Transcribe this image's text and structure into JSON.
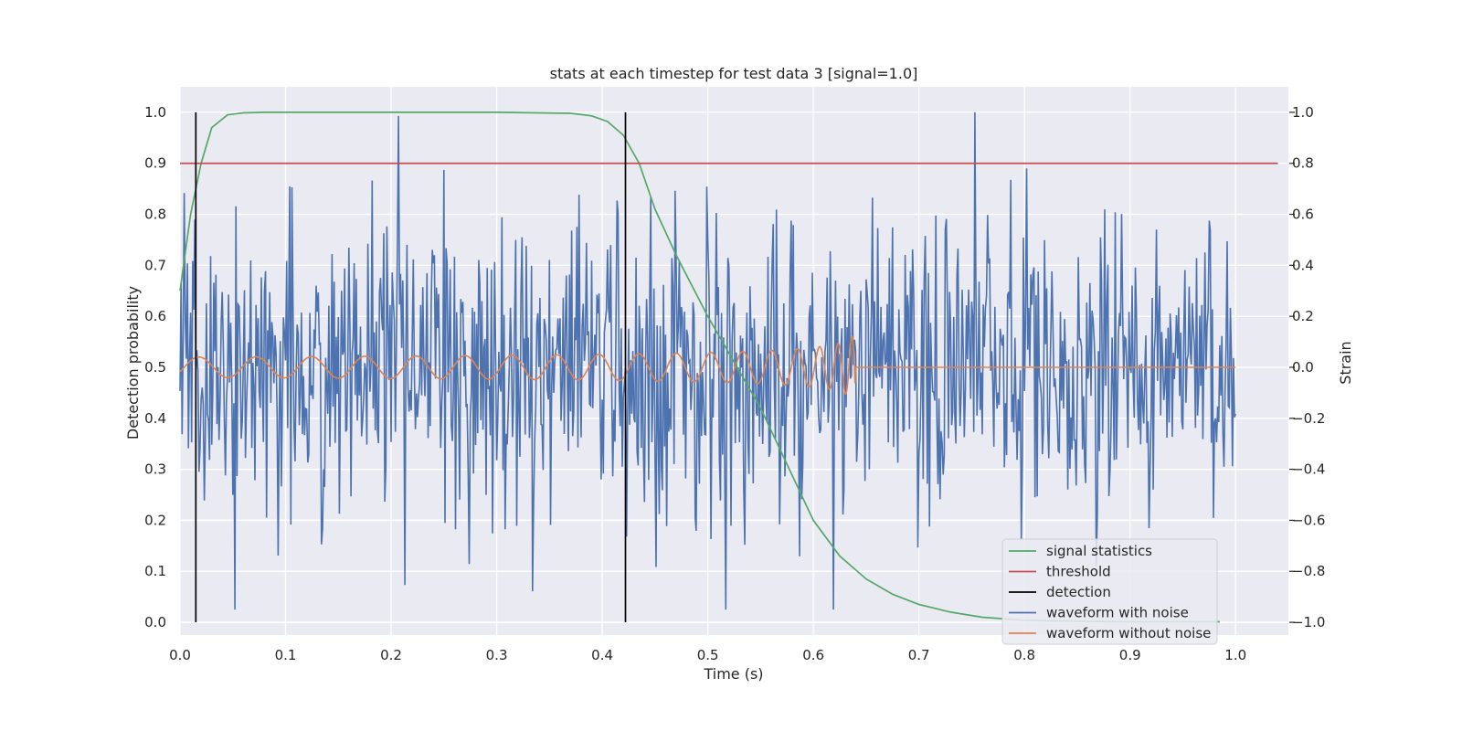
{
  "chart_data": {
    "type": "line",
    "title": "stats at each timestep for test data 3 [signal=1.0]",
    "xlabel": "Time (s)",
    "ylabel": "Detection probability",
    "ylabel_right": "Strain",
    "xlim": [
      0.0,
      1.05
    ],
    "ylim": [
      -0.025,
      1.05
    ],
    "ylim_right": [
      -1.05,
      1.1
    ],
    "xticks": [
      "0.0",
      "0.1",
      "0.2",
      "0.3",
      "0.4",
      "0.5",
      "0.6",
      "0.7",
      "0.8",
      "0.9",
      "1.0"
    ],
    "yticks": [
      "0.0",
      "0.1",
      "0.2",
      "0.3",
      "0.4",
      "0.5",
      "0.6",
      "0.7",
      "0.8",
      "0.9",
      "1.0"
    ],
    "yticks_right": [
      "−1.0",
      "−0.8",
      "−0.6",
      "−0.4",
      "−0.2",
      "0.0",
      "0.2",
      "0.4",
      "0.6",
      "0.8",
      "1.0"
    ],
    "grid": true,
    "legend_position": "lower-right",
    "colors": {
      "plot_background": "#eaeaf2",
      "grid": "#ffffff",
      "signal_statistics": "#55a868",
      "threshold": "#c44e52",
      "detection": "#000000",
      "waveform_noise": "#4c72b0",
      "waveform_clean": "#dd8452"
    },
    "series": [
      {
        "name": "signal statistics",
        "axis": "left",
        "x": [
          0.0,
          0.01,
          0.02,
          0.03,
          0.045,
          0.06,
          0.08,
          0.1,
          0.2,
          0.3,
          0.37,
          0.39,
          0.405,
          0.42,
          0.435,
          0.45,
          0.47,
          0.5,
          0.55,
          0.6,
          0.625,
          0.65,
          0.675,
          0.7,
          0.73,
          0.76,
          0.8,
          0.85,
          0.9,
          0.95,
          0.985
        ],
        "y": [
          0.65,
          0.8,
          0.9,
          0.97,
          0.995,
          0.999,
          1.0,
          1.0,
          1.0,
          1.0,
          0.998,
          0.993,
          0.982,
          0.955,
          0.9,
          0.81,
          0.72,
          0.6,
          0.42,
          0.2,
          0.13,
          0.085,
          0.055,
          0.035,
          0.02,
          0.01,
          0.004,
          0.002,
          0.001,
          0.001,
          0.001
        ]
      },
      {
        "name": "threshold",
        "axis": "left",
        "x": [
          0.0,
          1.04
        ],
        "y": [
          0.9,
          0.9
        ]
      },
      {
        "name": "detection",
        "axis": "left",
        "x": [
          0.015,
          0.422
        ],
        "y_range": [
          0.0,
          1.0
        ]
      },
      {
        "name": "waveform with noise",
        "axis": "right",
        "x_range": [
          0.0,
          1.0
        ],
        "amplitude_range": [
          -0.95,
          1.0
        ],
        "noise_std": 0.3
      },
      {
        "name": "waveform without noise",
        "axis": "right",
        "x_range": [
          0.0,
          1.0
        ],
        "chirp_end": 0.64,
        "amplitude_start": 0.04,
        "amplitude_peak": 0.2
      }
    ]
  }
}
